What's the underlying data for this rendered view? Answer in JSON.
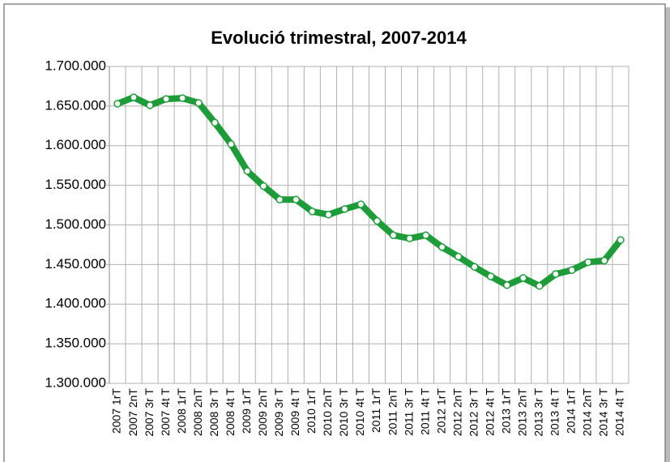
{
  "chart_data": {
    "type": "line",
    "title": "Evolució trimestral, 2007-2014",
    "categories": [
      "2007 1rT",
      "2007 2nT",
      "2007 3r T",
      "2007 4t T",
      "2008 1rT",
      "2008 2nT",
      "2008 3r T",
      "2008 4t T",
      "2009 1rT",
      "2009 2nT",
      "2009 3r T",
      "2009 4t T",
      "2010 1rT",
      "2010 2nT",
      "2010 3r T",
      "2010 4t T",
      "2011 1rT",
      "2011 2nT",
      "2011 3r T",
      "2011 4t T",
      "2012 1rT",
      "2012 2nT",
      "2012 3r T",
      "2012 4t T",
      "2013 1rT",
      "2013 2nT",
      "2013 3r T",
      "2013 4t T",
      "2014 1rT",
      "2014 2nT",
      "2014 3r T",
      "2014 4t T"
    ],
    "series": [
      {
        "color": "#1e9c3a",
        "values": [
          1653000,
          1661000,
          1651000,
          1659000,
          1660000,
          1654000,
          1629000,
          1602000,
          1568000,
          1549000,
          1532000,
          1532000,
          1517000,
          1513000,
          1520000,
          1526000,
          1505000,
          1487000,
          1483000,
          1487000,
          1472000,
          1460000,
          1447000,
          1435000,
          1424000,
          1433000,
          1423000,
          1438000,
          1443000,
          1453000,
          1455000,
          1481000
        ]
      }
    ],
    "ylim": [
      1300000,
      1700000
    ],
    "yticks": [
      {
        "value": 1300000,
        "label": "1.300.000"
      },
      {
        "value": 1350000,
        "label": "1.350.000"
      },
      {
        "value": 1400000,
        "label": "1.400.000"
      },
      {
        "value": 1450000,
        "label": "1.450.000"
      },
      {
        "value": 1500000,
        "label": "1.500.000"
      },
      {
        "value": 1550000,
        "label": "1.550.000"
      },
      {
        "value": 1600000,
        "label": "1.600.000"
      },
      {
        "value": 1650000,
        "label": "1.650.000"
      },
      {
        "value": 1700000,
        "label": "1.700.000"
      }
    ],
    "grid": true
  }
}
